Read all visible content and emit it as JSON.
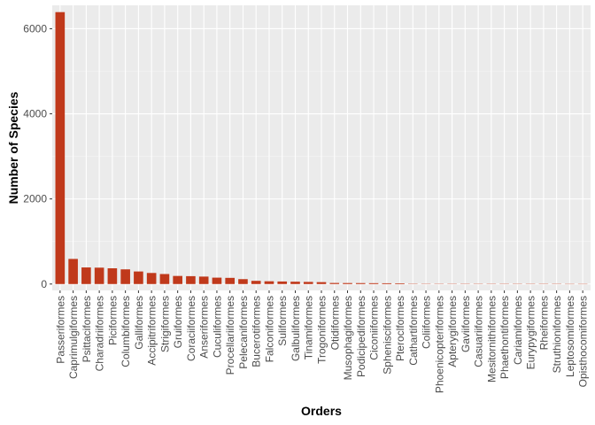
{
  "chart_data": {
    "type": "bar",
    "title": "",
    "xlabel": "Orders",
    "ylabel": "Number of Species",
    "ylim": [
      -150,
      6550
    ],
    "yticks": [
      0,
      2000,
      4000,
      6000
    ],
    "grid": true,
    "legend": "none",
    "categories": [
      "Passeriformes",
      "Caprimulgiformes",
      "Psittaciformes",
      "Charadriiformes",
      "Piciformes",
      "Columbiformes",
      "Galliformes",
      "Accipitriformes",
      "Strigiformes",
      "Gruiformes",
      "Coraciiformes",
      "Anseriformes",
      "Cuculiformes",
      "Procellariiformes",
      "Pelecaniformes",
      "Bucerotiformes",
      "Falconiformes",
      "Suliformes",
      "Galbuliformes",
      "Tinamiformes",
      "Trogoniformes",
      "Otidiformes",
      "Musophagiformes",
      "Podicipediformes",
      "Ciconiiformes",
      "Sphenisciformes",
      "Pteroclformes",
      "Cathartiformes",
      "Coliiformes",
      "Phoenicopteriformes",
      "Apterygiformes",
      "Gaviiformes",
      "Casuariiformes",
      "Mesitornithiformes",
      "Phaethontiformes",
      "Cariamiformes",
      "Eurypygiformes",
      "Rheiformes",
      "Struthioniformes",
      "Leptosomiformes",
      "Opisthocomiformes"
    ],
    "values": [
      6390,
      590,
      390,
      385,
      370,
      345,
      295,
      260,
      235,
      190,
      185,
      175,
      150,
      145,
      115,
      75,
      65,
      60,
      55,
      50,
      45,
      25,
      23,
      22,
      20,
      18,
      16,
      7,
      6,
      6,
      5,
      5,
      4,
      3,
      3,
      2,
      2,
      2,
      2,
      1,
      1
    ],
    "colors": {
      "bar": "#C0391B",
      "panel": "#EBEBEB",
      "grid_major": "#FFFFFF",
      "grid_minor": "#F5F5F5"
    }
  }
}
